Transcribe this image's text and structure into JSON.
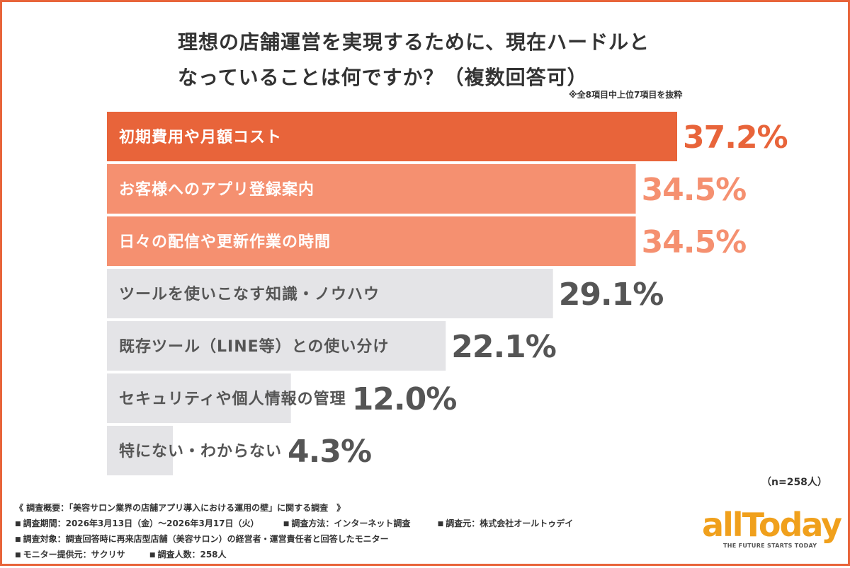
{
  "title_line1": "理想の店舗運営を実現するために、現在ハードルと",
  "title_line2": "なっていることは何ですか？（複数回答可）",
  "note": "※全8項目中上位7項目を抜粋",
  "sample_size": "（n=258人）",
  "colors": {
    "top": "#e8643a",
    "second": "#f59070",
    "rest": "#e4e4e7",
    "value_top": "#e8643a",
    "value_second": "#f59070",
    "value_rest": "#555555",
    "label_light": "#ffffff",
    "label_dark": "#555555",
    "border": "#e8643a",
    "logo": "#f0a01c"
  },
  "chart_data": {
    "type": "bar",
    "orientation": "horizontal",
    "unit": "%",
    "categories": [
      "初期費用や月額コスト",
      "お客様へのアプリ登録案内",
      "日々の配信や更新作業の時間",
      "ツールを使いこなす知識・ノウハウ",
      "既存ツール（LINE等）との使い分け",
      "セキュリティや個人情報の管理",
      "特にない・わからない"
    ],
    "values": [
      37.2,
      34.5,
      34.5,
      29.1,
      22.1,
      12.0,
      4.3
    ],
    "value_labels": [
      "37.2%",
      "34.5%",
      "34.5%",
      "29.1%",
      "22.1%",
      "12.0%",
      "4.3%"
    ],
    "bar_color_keys": [
      "top",
      "second",
      "second",
      "rest",
      "rest",
      "rest",
      "rest"
    ],
    "xlim": [
      0,
      37.2
    ],
    "grid": false,
    "legend": "none"
  },
  "overview": {
    "header": "《 調査概要：「美容サロン業界の店舗アプリ導入における運用の壁」に関する調査　》",
    "period": "調査期間：2026年3月13日（金）〜2026年3月17日（火）",
    "method": "調査方法：インターネット調査",
    "source": "調査元：株式会社オールトゥデイ",
    "target": "調査対象：調査回答時に再来店型店舗（美容サロン）の経営者・運営責任者と回答したモニター",
    "provider": "モニター提供元：サクリサ",
    "count": "調査人数：258人"
  },
  "logo": {
    "name": "allToday",
    "tagline": "THE FUTURE STARTS TODAY"
  }
}
